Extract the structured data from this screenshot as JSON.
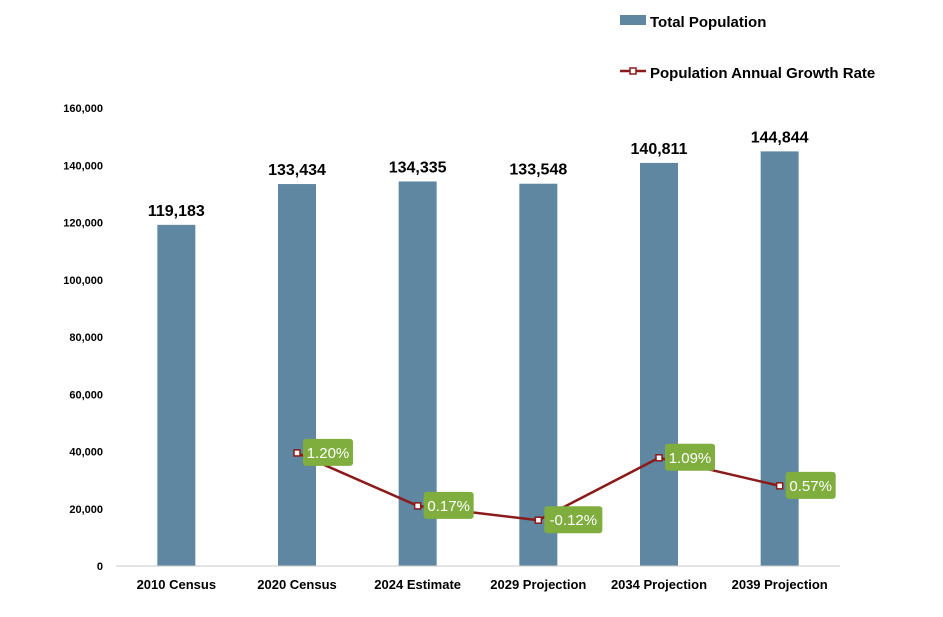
{
  "chart_data": {
    "type": "bar",
    "categories": [
      "2010 Census",
      "2020 Census",
      "2024 Estimate",
      "2029 Projection",
      "2034 Projection",
      "2039 Projection"
    ],
    "series": [
      {
        "name": "Total Population",
        "kind": "bar",
        "values": [
          119183,
          133434,
          134335,
          133548,
          140811,
          144844
        ],
        "labels": [
          "119,183",
          "133,434",
          "134,335",
          "133,548",
          "140,811",
          "144,844"
        ],
        "color": "#5F87A2"
      },
      {
        "name": "Population Annual Growth Rate",
        "kind": "line",
        "values": [
          null,
          1.2,
          0.17,
          -0.12,
          1.09,
          0.57
        ],
        "labels": [
          null,
          "1.20%",
          "0.17%",
          "-0.12%",
          "1.09%",
          "0.57%"
        ],
        "plot_values_on_primary_axis": [
          null,
          39500,
          21000,
          16000,
          37800,
          28000
        ],
        "color": "#8B1A1A",
        "label_bg": "#7FAE3E"
      }
    ],
    "ylim": [
      0,
      160000
    ],
    "yticks": [
      0,
      20000,
      40000,
      60000,
      80000,
      100000,
      120000,
      140000,
      160000
    ],
    "ytick_labels": [
      "0",
      "20,000",
      "40,000",
      "60,000",
      "80,000",
      "100,000",
      "120,000",
      "140,000",
      "160,000"
    ],
    "grid": false,
    "legend_position": "top-right"
  }
}
